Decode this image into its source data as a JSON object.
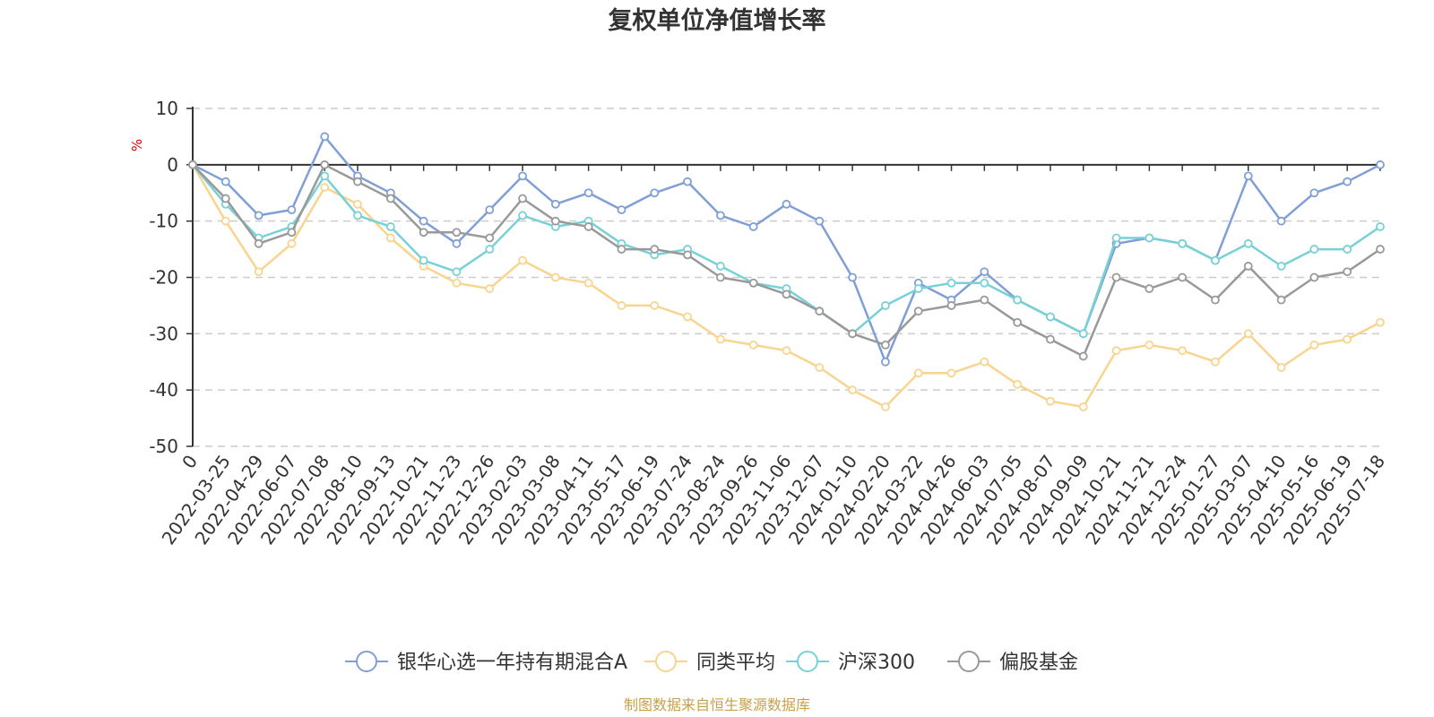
{
  "chart_data": {
    "type": "line",
    "title": "复权单位净值增长率",
    "ylabel": "%",
    "ylim": [
      -50,
      10
    ],
    "yticks": [
      "10",
      "0",
      "-10",
      "-20",
      "-30",
      "-40",
      "-50"
    ],
    "grid": true,
    "legend_position": "bottom-center",
    "credit": "制图数据来自恒生聚源数据库",
    "categories": [
      "0",
      "2022-03-25",
      "2022-04-29",
      "2022-06-07",
      "2022-07-08",
      "2022-08-10",
      "2022-09-13",
      "2022-10-21",
      "2022-11-23",
      "2022-12-26",
      "2023-02-03",
      "2023-03-08",
      "2023-04-11",
      "2023-05-17",
      "2023-06-19",
      "2023-07-24",
      "2023-08-24",
      "2023-09-26",
      "2023-11-06",
      "2023-12-07",
      "2024-01-10",
      "2024-02-20",
      "2024-03-22",
      "2024-04-26",
      "2024-06-03",
      "2024-07-05",
      "2024-08-07",
      "2024-09-09",
      "2024-10-21",
      "2024-11-21",
      "2024-12-24",
      "2025-01-27",
      "2025-03-07",
      "2025-04-10",
      "2025-05-16",
      "2025-06-19",
      "2025-07-18"
    ],
    "series": [
      {
        "name": "银华心选一年持有期混合A",
        "color": "#7f9fd6",
        "values": [
          0,
          -3,
          -9,
          -8,
          5,
          -2,
          -5,
          -10,
          -14,
          -8,
          -2,
          -7,
          -5,
          -8,
          -5,
          -3,
          -9,
          -11,
          -7,
          -10,
          -20,
          -35,
          -21,
          -24,
          -19,
          -24,
          -27,
          -30,
          -14,
          -13,
          -14,
          -17,
          -2,
          -10,
          -5,
          -3,
          0
        ]
      },
      {
        "name": "同类平均",
        "color": "#f9d48e",
        "values": [
          0,
          -10,
          -19,
          -14,
          -4,
          -7,
          -13,
          -18,
          -21,
          -22,
          -17,
          -20,
          -21,
          -25,
          -25,
          -27,
          -31,
          -32,
          -33,
          -36,
          -40,
          -43,
          -37,
          -37,
          -35,
          -39,
          -42,
          -43,
          -33,
          -32,
          -33,
          -35,
          -30,
          -36,
          -32,
          -31,
          -28
        ]
      },
      {
        "name": "沪深300",
        "color": "#77d1d6",
        "values": [
          0,
          -7,
          -13,
          -11,
          -2,
          -9,
          -11,
          -17,
          -19,
          -15,
          -9,
          -11,
          -10,
          -14,
          -16,
          -15,
          -18,
          -21,
          -22,
          -26,
          -30,
          -25,
          -22,
          -21,
          -21,
          -24,
          -27,
          -30,
          -13,
          -13,
          -14,
          -17,
          -14,
          -18,
          -15,
          -15,
          -11
        ]
      },
      {
        "name": "偏股基金",
        "color": "#999999",
        "values": [
          0,
          -6,
          -14,
          -12,
          0,
          -3,
          -6,
          -12,
          -12,
          -13,
          -6,
          -10,
          -11,
          -15,
          -15,
          -16,
          -20,
          -21,
          -23,
          -26,
          -30,
          -32,
          -26,
          -25,
          -24,
          -28,
          -31,
          -34,
          -20,
          -22,
          -20,
          -24,
          -18,
          -24,
          -20,
          -19,
          -15
        ]
      }
    ]
  }
}
